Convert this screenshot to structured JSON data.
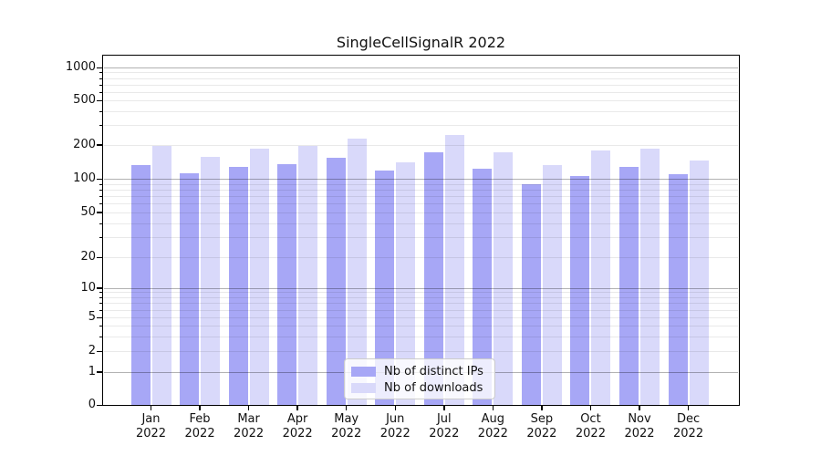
{
  "title": "SingleCellSignalR 2022",
  "colors": {
    "ips_bar": "#a7a7f6",
    "downloads_bar": "#d9d9fa",
    "axis": "#000000",
    "grid_major": "#b5b5b5",
    "grid_minor": "#e9e9e9",
    "legend_border": "#cccccc"
  },
  "legend": {
    "items": [
      {
        "label": "Nb of distinct IPs",
        "color": "#a7a7f6"
      },
      {
        "label": "Nb of downloads",
        "color": "#d9d9fa"
      }
    ],
    "position": "lower center"
  },
  "axes": {
    "ytick_labels": [
      "1000",
      "500",
      "200",
      "100",
      "50",
      "20",
      "10",
      "5",
      "2",
      "1",
      "0"
    ],
    "ytick_values": [
      1000,
      500,
      200,
      100,
      50,
      20,
      10,
      5,
      2,
      1,
      0
    ],
    "yscale": "symlog-like (log above 1, compressed to 0 at baseline)",
    "grid": "horizontal, major and minor"
  },
  "chart_data": {
    "type": "bar",
    "title": "SingleCellSignalR 2022",
    "categories": [
      "Jan 2022",
      "Feb 2022",
      "Mar 2022",
      "Apr 2022",
      "May 2022",
      "Jun 2022",
      "Jul 2022",
      "Aug 2022",
      "Sep 2022",
      "Oct 2022",
      "Nov 2022",
      "Dec 2022"
    ],
    "series": [
      {
        "name": "Nb of distinct IPs",
        "color": "#a7a7f6",
        "values": [
          133,
          112,
          127,
          135,
          154,
          119,
          170,
          123,
          90,
          105,
          128,
          109
        ]
      },
      {
        "name": "Nb of downloads",
        "color": "#d9d9fa",
        "values": [
          194,
          157,
          186,
          195,
          225,
          139,
          243,
          170,
          133,
          178,
          183,
          144
        ]
      }
    ],
    "xlabel": "",
    "ylabel": "",
    "ylim": [
      0,
      1280
    ],
    "yticks": [
      0,
      1,
      2,
      5,
      10,
      20,
      50,
      100,
      200,
      500,
      1000
    ],
    "grid": true,
    "legend_position": "lower center"
  }
}
